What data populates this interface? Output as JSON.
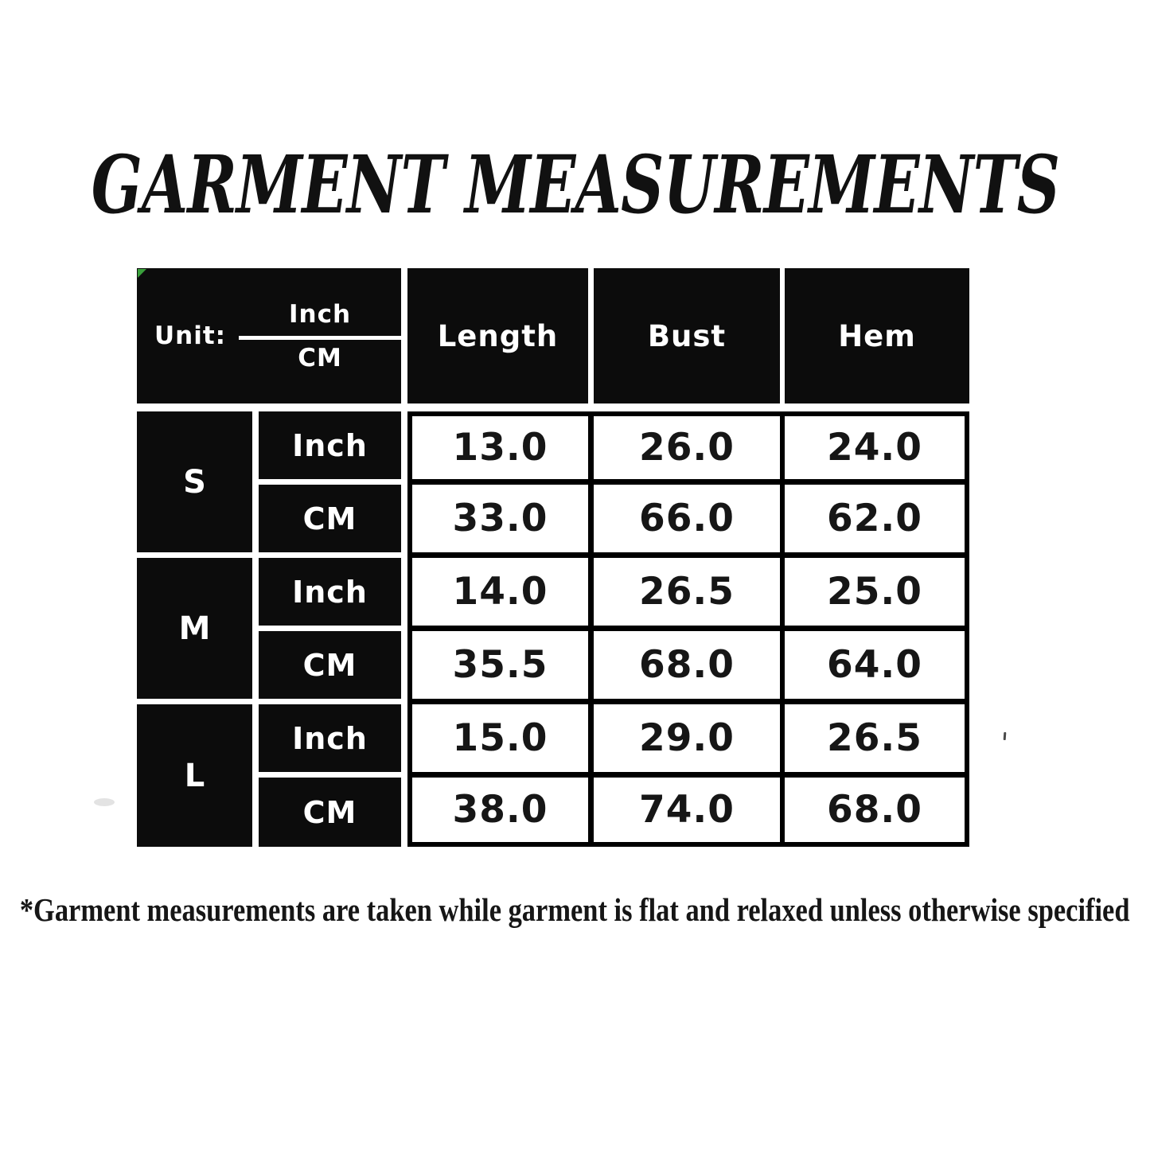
{
  "title": "GARMENT MEASUREMENTS",
  "table": {
    "unit_label": "Unit:",
    "unit_fraction": {
      "top": "Inch",
      "bottom": "CM"
    },
    "columns": [
      "Length",
      "Bust",
      "Hem"
    ],
    "sizes": [
      {
        "label": "S",
        "rows": [
          {
            "unit": "Inch",
            "values": [
              "13.0",
              "26.0",
              "24.0"
            ]
          },
          {
            "unit": "CM",
            "values": [
              "33.0",
              "66.0",
              "62.0"
            ]
          }
        ]
      },
      {
        "label": "M",
        "rows": [
          {
            "unit": "Inch",
            "values": [
              "14.0",
              "26.5",
              "25.0"
            ]
          },
          {
            "unit": "CM",
            "values": [
              "35.5",
              "68.0",
              "64.0"
            ]
          }
        ]
      },
      {
        "label": "L",
        "rows": [
          {
            "unit": "Inch",
            "values": [
              "15.0",
              "29.0",
              "26.5"
            ]
          },
          {
            "unit": "CM",
            "values": [
              "38.0",
              "74.0",
              "68.0"
            ]
          }
        ]
      }
    ]
  },
  "footnote": "*Garment measurements are taken while garment is flat and relaxed unless otherwise specified",
  "colors": {
    "cell_black": "#0c0c0c",
    "grid_black": "#000000",
    "marker_green": "#3aa03c",
    "background": "#ffffff"
  }
}
